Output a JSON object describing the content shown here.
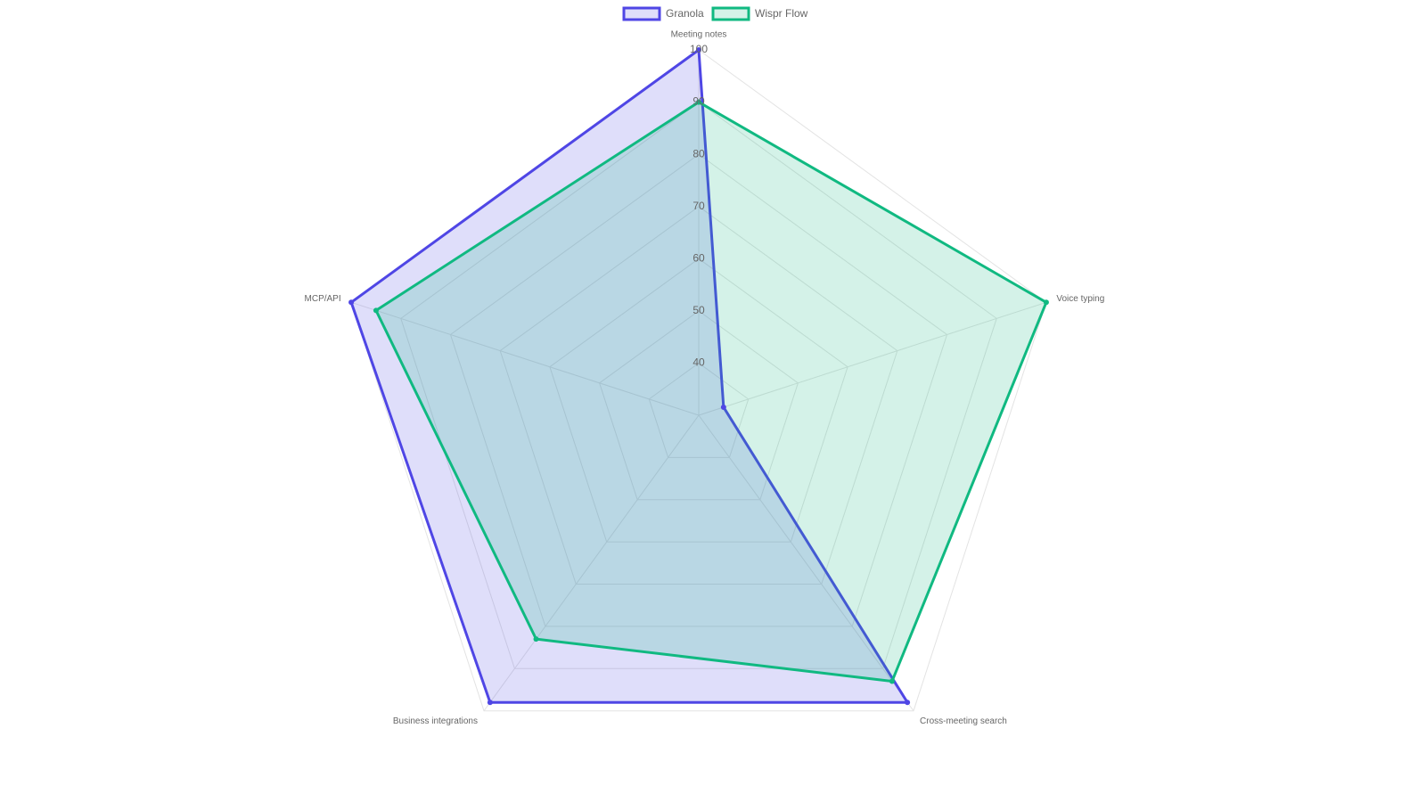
{
  "chart_data": {
    "type": "radar",
    "categories": [
      "Meeting notes",
      "Voice typing",
      "Cross-meeting search",
      "Business integrations",
      "MCP/API"
    ],
    "series": [
      {
        "name": "Granola",
        "color": "#4f46e5",
        "values": [
          100,
          35,
          98,
          98,
          100
        ]
      },
      {
        "name": "Wispr Flow",
        "color": "#10b981",
        "values": [
          90,
          100,
          93,
          83,
          95
        ]
      }
    ],
    "rlim": [
      30,
      100
    ],
    "rticks": [
      40,
      50,
      60,
      70,
      80,
      90,
      100
    ],
    "grid": true,
    "legend": "top"
  }
}
